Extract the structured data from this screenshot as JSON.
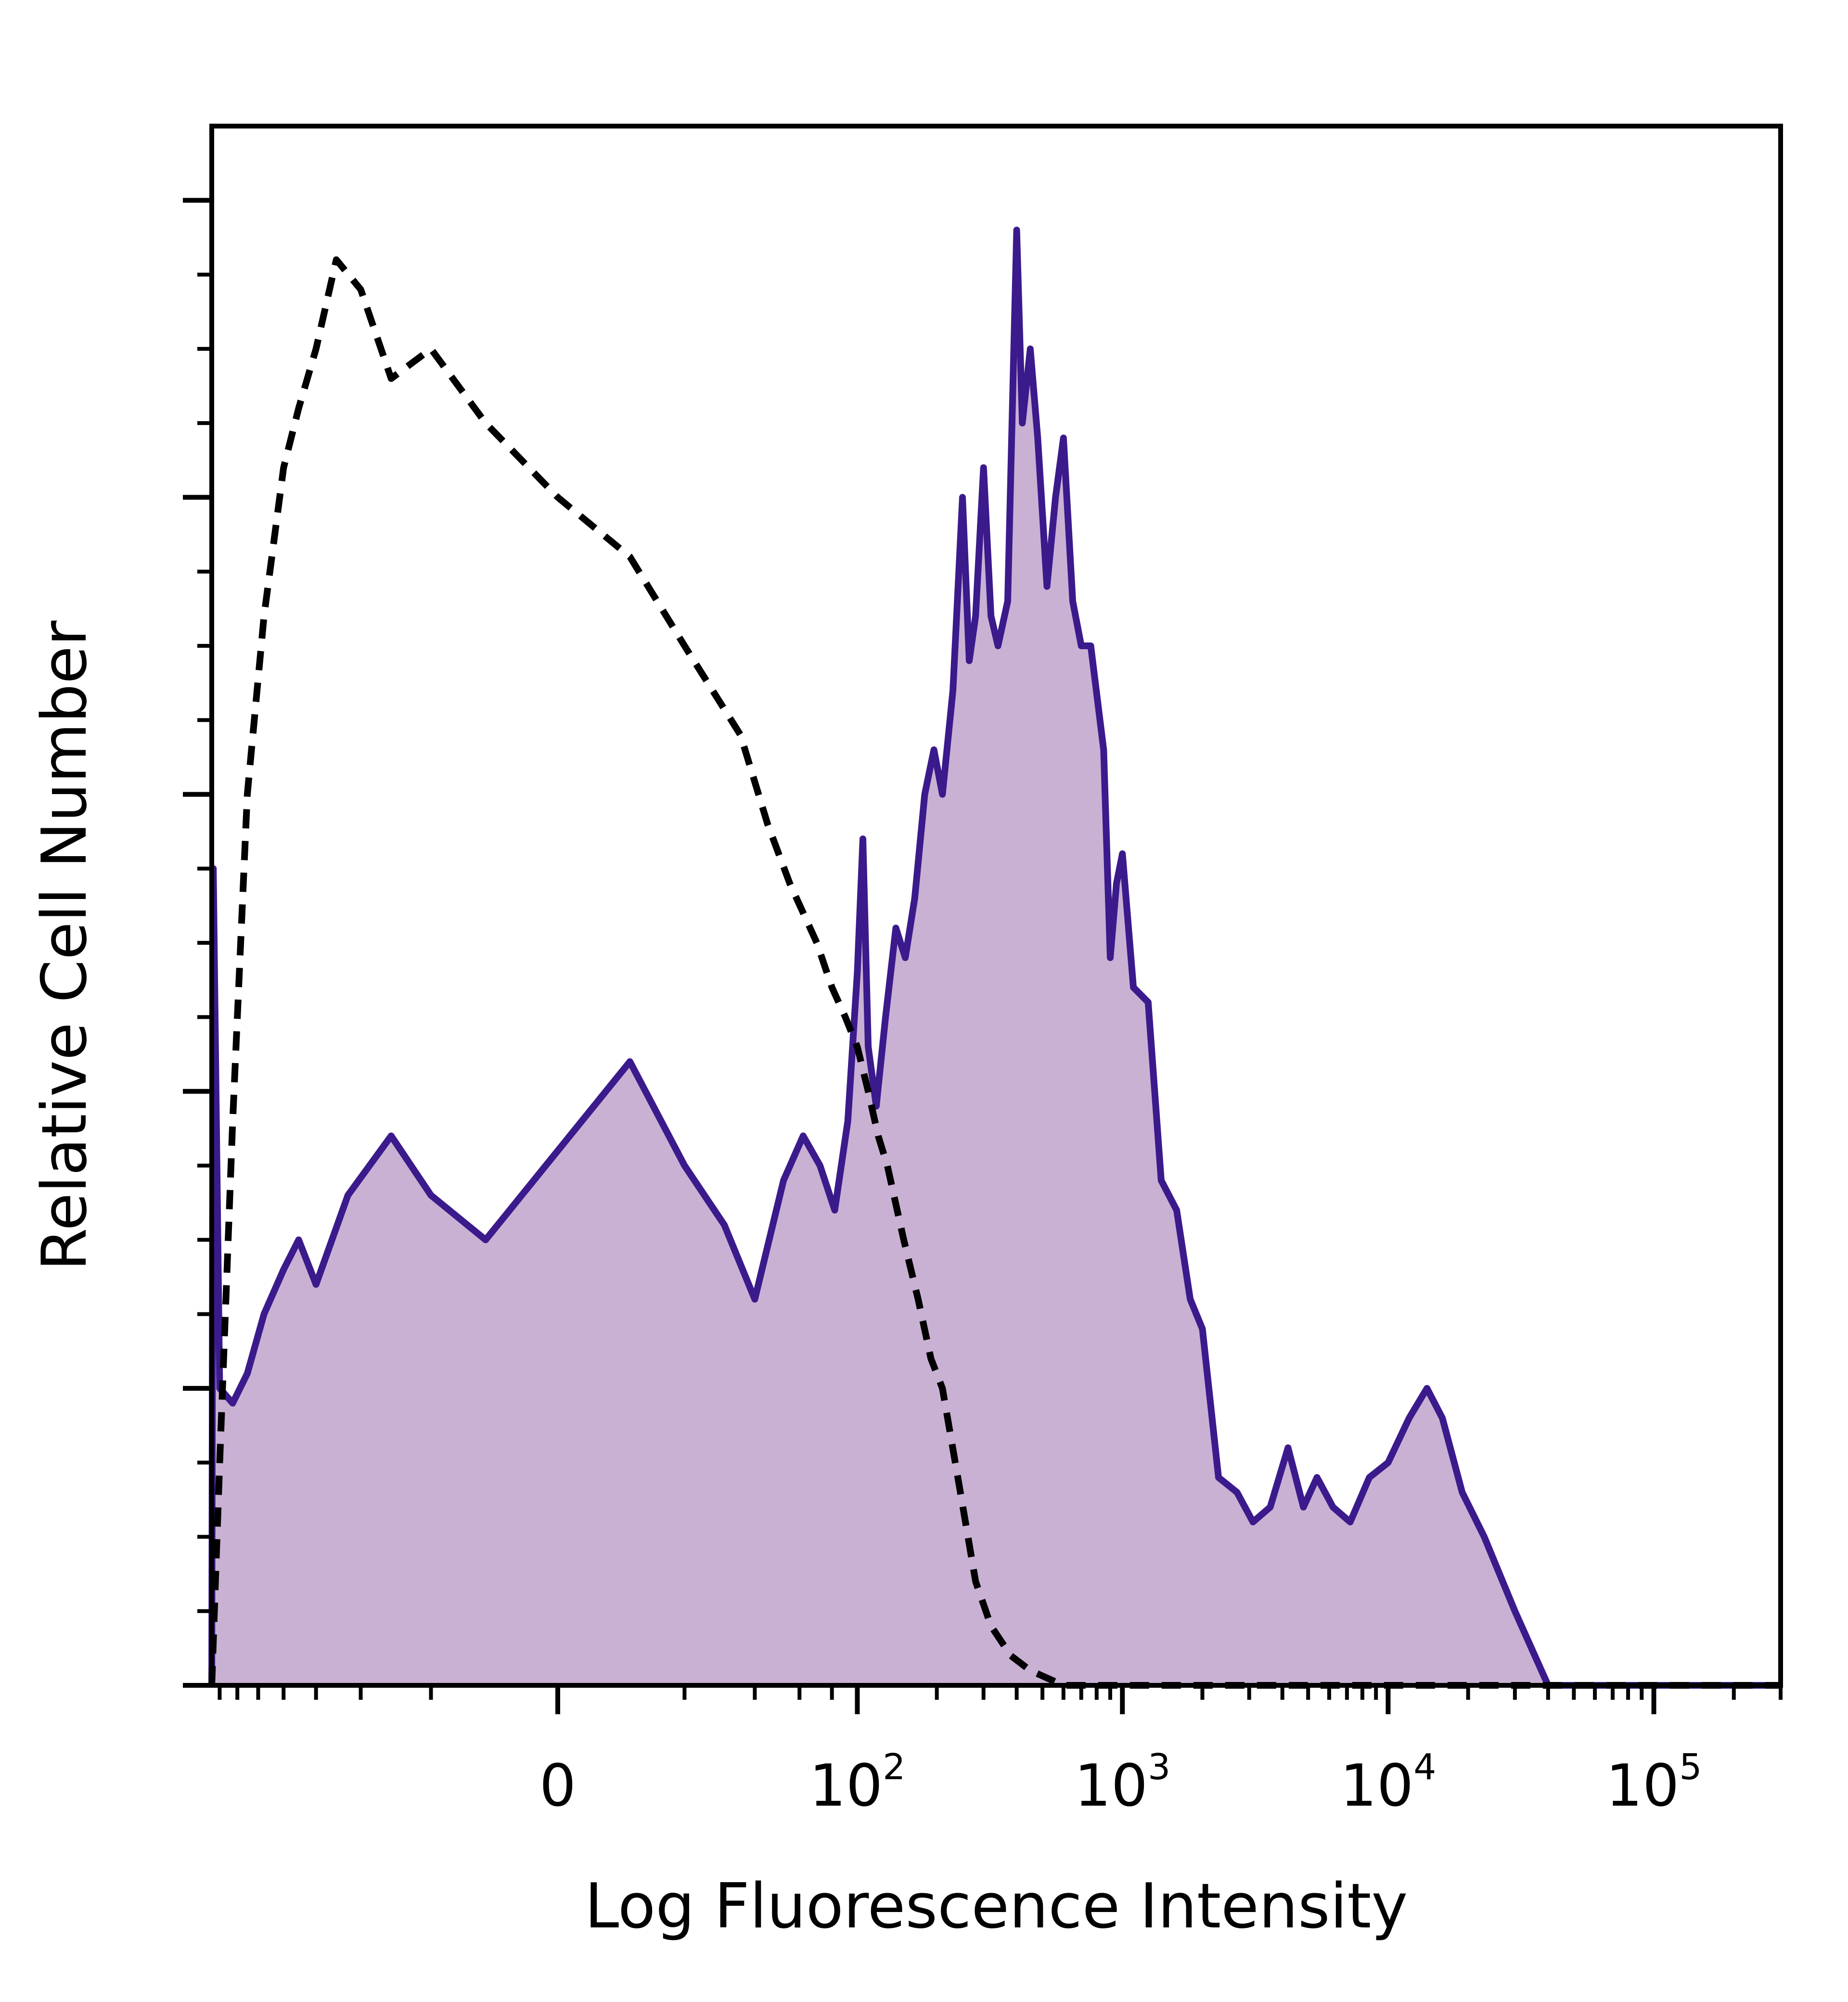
{
  "chart_data": {
    "type": "area",
    "title": "",
    "xlabel": "Log Fluorescence Intensity",
    "ylabel": "Relative Cell Number",
    "x_scale": "biexponential (log above 10^2, linear near 0)",
    "xlim": [
      -150,
      300000
    ],
    "ylim": [
      0,
      1.05
    ],
    "grid": false,
    "legend": "none",
    "x_tick_labels": [
      {
        "value": 0,
        "text": "0"
      },
      {
        "value": 100,
        "base": "10",
        "exp": "2"
      },
      {
        "value": 1000,
        "base": "10",
        "exp": "3"
      },
      {
        "value": 10000,
        "base": "10",
        "exp": "4"
      },
      {
        "value": 100000,
        "base": "10",
        "exp": "5"
      }
    ],
    "colors": {
      "stained_fill": "#c9b1d4",
      "stained_line": "#3b1a8c",
      "control_line": "#000000",
      "frame": "#000000"
    },
    "series": [
      {
        "style": "filled-solid",
        "points": [
          [
            -150,
            0.0
          ],
          [
            -148,
            0.55
          ],
          [
            -140,
            0.2
          ],
          [
            -125,
            0.19
          ],
          [
            -110,
            0.21
          ],
          [
            -95,
            0.25
          ],
          [
            -80,
            0.28
          ],
          [
            -70,
            0.3
          ],
          [
            -60,
            0.27
          ],
          [
            -45,
            0.33
          ],
          [
            -30,
            0.37
          ],
          [
            -20,
            0.33
          ],
          [
            -10,
            0.3
          ],
          [
            0,
            0.36
          ],
          [
            10,
            0.42
          ],
          [
            20,
            0.35
          ],
          [
            30,
            0.31
          ],
          [
            40,
            0.26
          ],
          [
            52,
            0.34
          ],
          [
            62,
            0.37
          ],
          [
            72,
            0.35
          ],
          [
            82,
            0.32
          ],
          [
            92,
            0.38
          ],
          [
            100,
            0.48
          ],
          [
            105,
            0.57
          ],
          [
            110,
            0.43
          ],
          [
            118,
            0.39
          ],
          [
            128,
            0.45
          ],
          [
            140,
            0.51
          ],
          [
            152,
            0.49
          ],
          [
            165,
            0.53
          ],
          [
            180,
            0.6
          ],
          [
            195,
            0.63
          ],
          [
            210,
            0.6
          ],
          [
            230,
            0.67
          ],
          [
            250,
            0.8
          ],
          [
            265,
            0.69
          ],
          [
            280,
            0.72
          ],
          [
            300,
            0.82
          ],
          [
            320,
            0.72
          ],
          [
            340,
            0.7
          ],
          [
            370,
            0.73
          ],
          [
            400,
            0.98
          ],
          [
            420,
            0.85
          ],
          [
            450,
            0.9
          ],
          [
            480,
            0.84
          ],
          [
            520,
            0.74
          ],
          [
            560,
            0.8
          ],
          [
            600,
            0.84
          ],
          [
            650,
            0.73
          ],
          [
            700,
            0.7
          ],
          [
            760,
            0.7
          ],
          [
            850,
            0.63
          ],
          [
            900,
            0.49
          ],
          [
            950,
            0.54
          ],
          [
            1000,
            0.56
          ],
          [
            1100,
            0.47
          ],
          [
            1250,
            0.46
          ],
          [
            1400,
            0.34
          ],
          [
            1600,
            0.32
          ],
          [
            1800,
            0.26
          ],
          [
            2000,
            0.24
          ],
          [
            2300,
            0.14
          ],
          [
            2700,
            0.13
          ],
          [
            3100,
            0.11
          ],
          [
            3600,
            0.12
          ],
          [
            4200,
            0.16
          ],
          [
            4800,
            0.12
          ],
          [
            5400,
            0.14
          ],
          [
            6200,
            0.12
          ],
          [
            7200,
            0.11
          ],
          [
            8500,
            0.14
          ],
          [
            10000,
            0.15
          ],
          [
            12000,
            0.18
          ],
          [
            14000,
            0.2
          ],
          [
            16000,
            0.18
          ],
          [
            19000,
            0.13
          ],
          [
            23000,
            0.1
          ],
          [
            30000,
            0.05
          ],
          [
            40000,
            0.0
          ],
          [
            60000,
            0.0
          ],
          [
            100000,
            0.0
          ],
          [
            200000,
            0.0
          ],
          [
            300000,
            0.0
          ]
        ]
      },
      {
        "style": "dashed",
        "points": [
          [
            -150,
            0.0
          ],
          [
            -140,
            0.15
          ],
          [
            -125,
            0.38
          ],
          [
            -110,
            0.6
          ],
          [
            -95,
            0.72
          ],
          [
            -80,
            0.82
          ],
          [
            -70,
            0.86
          ],
          [
            -60,
            0.9
          ],
          [
            -50,
            0.96
          ],
          [
            -40,
            0.94
          ],
          [
            -30,
            0.88
          ],
          [
            -20,
            0.9
          ],
          [
            -10,
            0.85
          ],
          [
            0,
            0.8
          ],
          [
            10,
            0.76
          ],
          [
            20,
            0.7
          ],
          [
            35,
            0.64
          ],
          [
            45,
            0.58
          ],
          [
            55,
            0.54
          ],
          [
            70,
            0.5
          ],
          [
            80,
            0.47
          ],
          [
            90,
            0.45
          ],
          [
            100,
            0.43
          ],
          [
            110,
            0.4
          ],
          [
            120,
            0.37
          ],
          [
            130,
            0.35
          ],
          [
            150,
            0.3
          ],
          [
            170,
            0.26
          ],
          [
            190,
            0.22
          ],
          [
            210,
            0.2
          ],
          [
            240,
            0.14
          ],
          [
            280,
            0.07
          ],
          [
            320,
            0.04
          ],
          [
            380,
            0.02
          ],
          [
            450,
            0.01
          ],
          [
            600,
            0.0
          ],
          [
            1000,
            0.0
          ],
          [
            5000,
            0.0
          ],
          [
            30000,
            0.0
          ],
          [
            300000,
            0.0
          ]
        ]
      }
    ]
  }
}
